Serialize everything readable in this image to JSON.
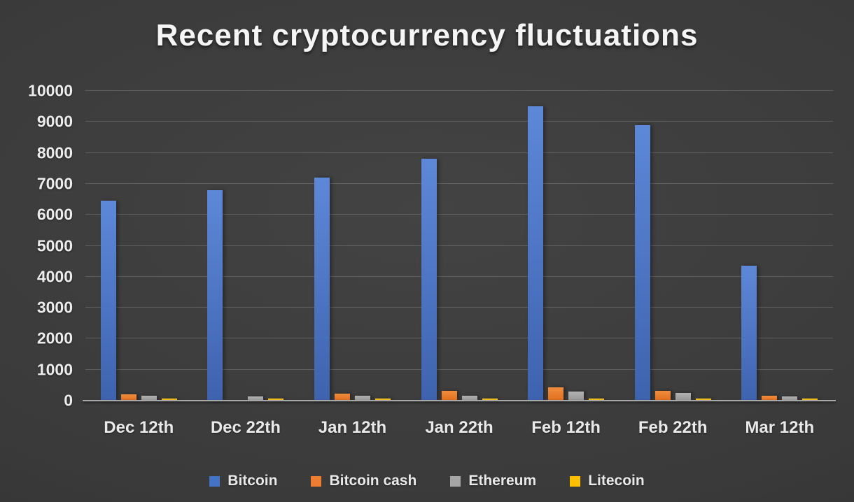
{
  "chart_data": {
    "type": "bar",
    "title": "Recent cryptocurrency fluctuations",
    "categories": [
      "Dec 12th",
      "Dec 22th",
      "Jan 12th",
      "Jan 22th",
      "Feb 12th",
      "Feb 22th",
      "Mar 12th"
    ],
    "series": [
      {
        "name": "Bitcoin",
        "color": "#4472C4",
        "gradient_top": "#5d88d8",
        "gradient_bottom": "#3e63ae",
        "values": [
          6450,
          6800,
          7200,
          7800,
          9500,
          8900,
          4350
        ]
      },
      {
        "name": "Bitcoin cash",
        "color": "#ED7D31",
        "gradient_top": "#f18c3e",
        "gradient_bottom": "#e06f1e",
        "values": [
          200,
          0,
          220,
          320,
          420,
          320,
          160
        ]
      },
      {
        "name": "Ethereum",
        "color": "#A5A5A5",
        "gradient_top": "#b2b2b2",
        "gradient_bottom": "#979797",
        "values": [
          150,
          130,
          150,
          150,
          290,
          250,
          130
        ]
      },
      {
        "name": "Litecoin",
        "color": "#FFC000",
        "gradient_top": "#ffca26",
        "gradient_bottom": "#efb300",
        "values": [
          60,
          60,
          60,
          60,
          70,
          60,
          60
        ]
      }
    ],
    "xlabel": "",
    "ylabel": "",
    "ylim": [
      0,
      10000
    ],
    "ytick_step": 1000,
    "grid": true,
    "legend_position": "bottom",
    "background_color": "#3a3a3a",
    "text_color": "#ececec"
  }
}
